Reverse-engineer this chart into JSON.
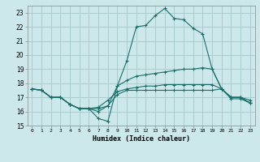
{
  "xlabel": "Humidex (Indice chaleur)",
  "bg_color": "#cce8ea",
  "grid_color": "#aacccc",
  "line_color": "#1a6e6a",
  "xlim": [
    -0.5,
    23.5
  ],
  "ylim": [
    15,
    23.5
  ],
  "yticks": [
    15,
    16,
    17,
    18,
    19,
    20,
    21,
    22,
    23
  ],
  "xticks": [
    0,
    1,
    2,
    3,
    4,
    5,
    6,
    7,
    8,
    9,
    10,
    11,
    12,
    13,
    14,
    15,
    16,
    17,
    18,
    19,
    20,
    21,
    22,
    23
  ],
  "line1_y": [
    17.6,
    17.5,
    17.0,
    17.0,
    16.5,
    16.2,
    16.2,
    15.5,
    15.3,
    17.8,
    19.6,
    22.0,
    22.1,
    22.8,
    23.3,
    22.6,
    22.5,
    21.9,
    21.5,
    19.0,
    17.6,
    16.9,
    16.9,
    16.6
  ],
  "line2_y": [
    17.6,
    17.5,
    17.0,
    17.0,
    16.5,
    16.2,
    16.2,
    16.0,
    16.4,
    17.8,
    18.2,
    18.5,
    18.6,
    18.7,
    18.8,
    18.9,
    19.0,
    19.0,
    19.1,
    19.0,
    17.6,
    17.0,
    17.0,
    16.8
  ],
  "line3_y": [
    17.6,
    17.5,
    17.0,
    17.0,
    16.5,
    16.2,
    16.2,
    16.3,
    16.8,
    17.4,
    17.6,
    17.7,
    17.8,
    17.8,
    17.9,
    17.9,
    17.9,
    17.9,
    17.9,
    17.9,
    17.6,
    17.0,
    17.0,
    16.6
  ],
  "line4_y": [
    17.6,
    17.5,
    17.0,
    17.0,
    16.5,
    16.2,
    16.2,
    16.2,
    16.4,
    17.2,
    17.5,
    17.5,
    17.5,
    17.5,
    17.5,
    17.5,
    17.5,
    17.5,
    17.5,
    17.5,
    17.6,
    17.0,
    17.0,
    16.6
  ]
}
